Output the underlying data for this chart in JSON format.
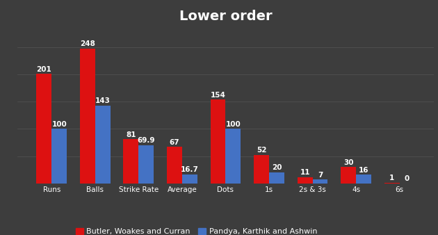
{
  "title": "Lower order",
  "categories": [
    "Runs",
    "Balls",
    "Strike Rate",
    "Average",
    "Dots",
    "1s",
    "2s & 3s",
    "4s",
    "6s"
  ],
  "england_values": [
    201,
    248,
    81.0,
    67.0,
    154,
    52,
    11,
    30,
    1
  ],
  "india_values": [
    100,
    143,
    69.9,
    16.7,
    100,
    20,
    7,
    16,
    0
  ],
  "england_color": "#dd1111",
  "india_color": "#4472c4",
  "england_label": "Butler, Woakes and Curran",
  "india_label": "Pandya, Karthik and Ashwin",
  "background_color": "#3d3d3d",
  "text_color": "#ffffff",
  "title_fontsize": 14,
  "label_fontsize": 7.5,
  "bar_label_fontsize": 7.5,
  "bar_width": 0.35,
  "ylim": [
    0,
    285
  ],
  "grid_color": "#555555",
  "legend_fontsize": 8
}
